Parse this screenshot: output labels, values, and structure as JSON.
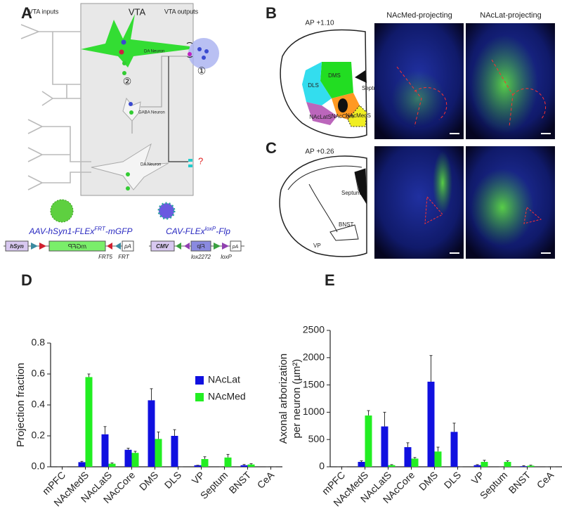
{
  "panel_a": {
    "label": "A",
    "headers": [
      "VTA inputs",
      "VTA",
      "VTA outputs"
    ],
    "neurons": [
      "DA Neuron",
      "GABA Neuron",
      "DA Neuron"
    ],
    "unknown": "?",
    "markers": [
      "①",
      "②"
    ],
    "vector1": {
      "name": [
        "AAV-hSyn1-FLEx",
        "FRT",
        "-mGFP"
      ],
      "elements": [
        "hSyn",
        "mGFP",
        "pA",
        "FRT5",
        "FRT"
      ]
    },
    "vector2": {
      "name": [
        "CAV-FLEx",
        "loxP",
        "-Flp"
      ],
      "elements": [
        "CMV",
        "Flp",
        "pA",
        "lox2272",
        "loxP"
      ]
    }
  },
  "panel_b": {
    "label": "B",
    "section": "AP +1.10",
    "regions": [
      "DMS",
      "DLS",
      "Septum",
      "NAcCore",
      "NAcLatS",
      "NAcMedS"
    ],
    "columns": [
      "NAcMed-projecting",
      "NAcLat-projecting"
    ]
  },
  "panel_c": {
    "label": "C",
    "section": "AP +0.26",
    "regions": [
      "Septum",
      "BNST",
      "VP"
    ]
  },
  "chart_data": [
    {
      "type": "bar",
      "panel": "D",
      "y_label": [
        "Projection fraction"
      ],
      "categories": [
        "mPFC",
        "NAcMedS",
        "NAcLatS",
        "NAcCore",
        "DMS",
        "DLS",
        "VP",
        "Septum",
        "BNST",
        "CeA"
      ],
      "series": [
        {
          "name": "NAcLat",
          "color": "#1010e0",
          "values": [
            0,
            0.03,
            0.21,
            0.11,
            0.43,
            0.2,
            0.01,
            0,
            0.01,
            0
          ],
          "errors": [
            0,
            0.005,
            0.05,
            0.01,
            0.075,
            0.04,
            0,
            0,
            0.005,
            0
          ]
        },
        {
          "name": "NAcMed",
          "color": "#22ee22",
          "values": [
            0,
            0.58,
            0.02,
            0.09,
            0.18,
            0,
            0.05,
            0.06,
            0.015,
            0
          ],
          "errors": [
            0,
            0.02,
            0.005,
            0.01,
            0.045,
            0,
            0.015,
            0.02,
            0.005,
            0
          ]
        }
      ],
      "ylim": [
        0,
        0.8
      ],
      "yticks": [
        {
          "value": 0,
          "label": "0.0"
        },
        0.2,
        0.4,
        0.6,
        0.8
      ],
      "legend": "right"
    },
    {
      "type": "bar",
      "panel": "E",
      "y_label": [
        "Axonal arborization",
        "per neuron (µm²)"
      ],
      "categories": [
        "mPFC",
        "NAcMedS",
        "NAcLatS",
        "NAcCore",
        "DMS",
        "DLS",
        "VP",
        "Septum",
        "BNST",
        "CeA"
      ],
      "series": [
        {
          "color": "#1010e0",
          "values": [
            0,
            90,
            740,
            360,
            1560,
            640,
            30,
            0,
            10,
            0
          ],
          "errors": [
            0,
            20,
            260,
            80,
            480,
            160,
            10,
            0,
            10,
            0
          ]
        },
        {
          "color": "#22ee22",
          "values": [
            0,
            940,
            30,
            150,
            280,
            0,
            90,
            90,
            20,
            0
          ],
          "errors": [
            0,
            90,
            10,
            20,
            80,
            0,
            30,
            20,
            10,
            0
          ]
        }
      ],
      "ylim": [
        0,
        2500
      ],
      "yticks": [
        0,
        500,
        1000,
        1500,
        2000,
        2500
      ]
    }
  ]
}
